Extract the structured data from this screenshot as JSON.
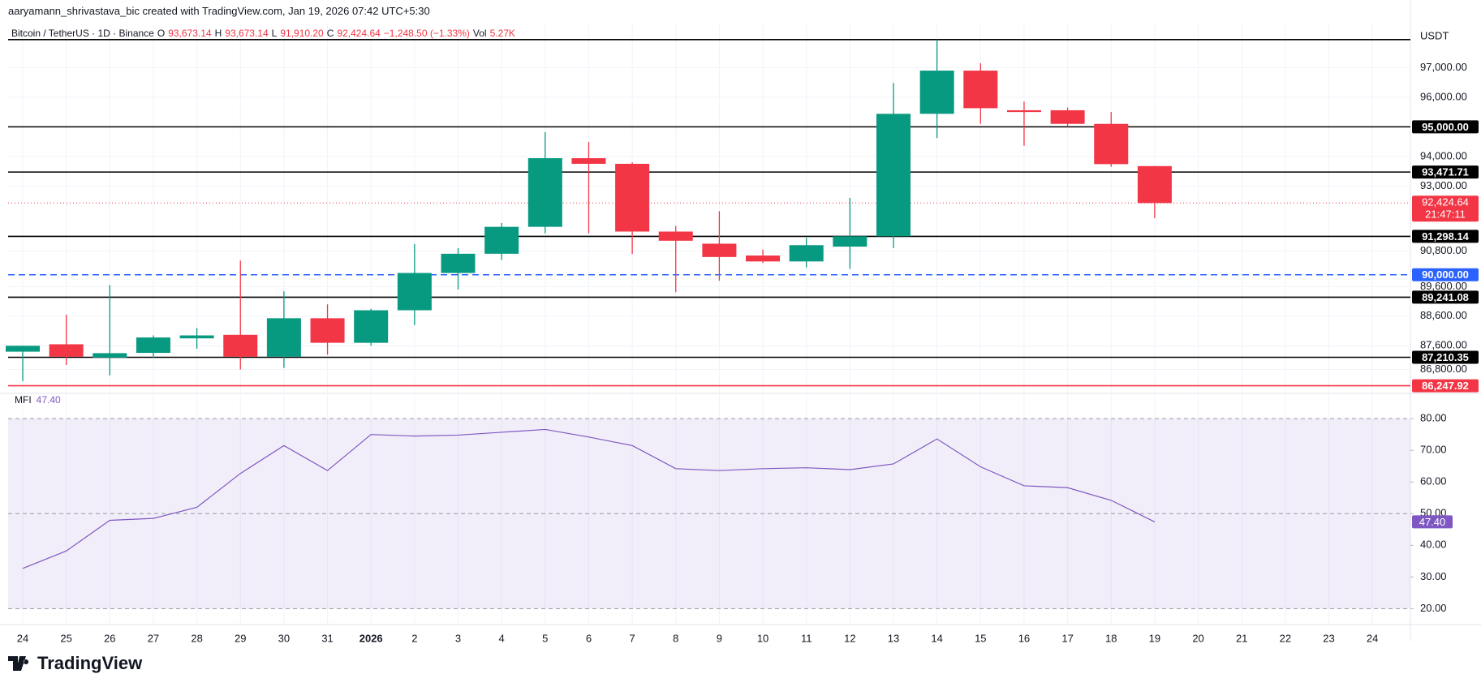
{
  "header": "aaryamann_shrivastava_bic created with TradingView.com, Jan 19, 2026 07:42 UTC+5:30",
  "chart_data": {
    "type": "candlestick",
    "legend": {
      "symbol": "Bitcoin / TetherUS · 1D · Binance",
      "o_label": "O",
      "o": "93,673.14",
      "h_label": "H",
      "h": "93,673.14",
      "l_label": "L",
      "l": "91,910.20",
      "c_label": "C",
      "c": "92,424.64",
      "change": "−1,248.50 (−1.33%)",
      "vol_label": "Vol",
      "vol": "5.27K"
    },
    "currency": "USDT",
    "categories": [
      "24",
      "25",
      "26",
      "27",
      "28",
      "29",
      "30",
      "31",
      "2026",
      "2",
      "3",
      "4",
      "5",
      "6",
      "7",
      "8",
      "9",
      "10",
      "11",
      "12",
      "13",
      "14",
      "15",
      "16",
      "17",
      "18",
      "19",
      "20",
      "21",
      "22",
      "23",
      "24"
    ],
    "up_color": "#089981",
    "down_color": "#f23645",
    "candles": [
      {
        "open": 87400,
        "high": 87600,
        "low": 86400,
        "close": 87600
      },
      {
        "open": 87650,
        "high": 88650,
        "low": 86950,
        "close": 87230
      },
      {
        "open": 87200,
        "high": 89650,
        "low": 86600,
        "close": 87350
      },
      {
        "open": 87360,
        "high": 87950,
        "low": 87200,
        "close": 87880
      },
      {
        "open": 87850,
        "high": 88200,
        "low": 87500,
        "close": 87950
      },
      {
        "open": 87970,
        "high": 90480,
        "low": 86800,
        "close": 87230
      },
      {
        "open": 87230,
        "high": 89440,
        "low": 86850,
        "close": 88530
      },
      {
        "open": 88530,
        "high": 89000,
        "low": 87300,
        "close": 87700
      },
      {
        "open": 87700,
        "high": 88850,
        "low": 87600,
        "close": 88800
      },
      {
        "open": 88800,
        "high": 91040,
        "low": 88300,
        "close": 90060
      },
      {
        "open": 90060,
        "high": 90900,
        "low": 89500,
        "close": 90710
      },
      {
        "open": 90710,
        "high": 91750,
        "low": 90500,
        "close": 91620
      },
      {
        "open": 91620,
        "high": 94820,
        "low": 91400,
        "close": 93940
      },
      {
        "open": 93940,
        "high": 94490,
        "low": 91400,
        "close": 93750
      },
      {
        "open": 93750,
        "high": 93800,
        "low": 90700,
        "close": 91460
      },
      {
        "open": 91460,
        "high": 91650,
        "low": 89410,
        "close": 91150
      },
      {
        "open": 91050,
        "high": 92150,
        "low": 89800,
        "close": 90600
      },
      {
        "open": 90650,
        "high": 90850,
        "low": 90400,
        "close": 90450
      },
      {
        "open": 90450,
        "high": 91250,
        "low": 90250,
        "close": 91000
      },
      {
        "open": 90950,
        "high": 92600,
        "low": 90200,
        "close": 91300
      },
      {
        "open": 91300,
        "high": 96480,
        "low": 90900,
        "close": 95440
      },
      {
        "open": 95440,
        "high": 97950,
        "low": 94620,
        "close": 96900
      },
      {
        "open": 96900,
        "high": 97150,
        "low": 95100,
        "close": 95630
      },
      {
        "open": 95560,
        "high": 95850,
        "low": 94360,
        "close": 95500
      },
      {
        "open": 95560,
        "high": 95650,
        "low": 95000,
        "close": 95100
      },
      {
        "open": 95100,
        "high": 95500,
        "low": 93650,
        "close": 93740
      },
      {
        "open": 93673.14,
        "high": 93673.14,
        "low": 91910.2,
        "close": 92424.64
      }
    ],
    "ylim": [
      86100,
      98300
    ],
    "yticks": [
      {
        "value": 97000,
        "label": "97,000.00"
      },
      {
        "value": 96000,
        "label": "96,000.00"
      },
      {
        "value": 94000,
        "label": "94,000.00"
      },
      {
        "value": 93000,
        "label": "93,000.00"
      },
      {
        "value": 90800,
        "label": "90,800.00"
      },
      {
        "value": 89600,
        "label": "89,600.00"
      },
      {
        "value": 88600,
        "label": "88,600.00"
      },
      {
        "value": 87600,
        "label": "87,600.00"
      },
      {
        "value": 86800,
        "label": "86,800.00"
      }
    ],
    "levels": [
      {
        "value": 97950,
        "color": "#000000"
      },
      {
        "value": 95000,
        "label": "95,000.00",
        "color": "#000000"
      },
      {
        "value": 93471.71,
        "label": "93,471.71",
        "color": "#000000"
      },
      {
        "value": 91298.14,
        "label": "91,298.14",
        "color": "#000000"
      },
      {
        "value": 90000,
        "label": "90,000.00",
        "color": "#2962ff",
        "dashed": true
      },
      {
        "value": 89241.08,
        "label": "89,241.08",
        "color": "#000000"
      },
      {
        "value": 87210.35,
        "label": "87,210.35",
        "color": "#000000"
      },
      {
        "value": 86247.92,
        "label": "86,247.92",
        "color": "#f23645"
      }
    ],
    "last_price": {
      "value": 92424.64,
      "label": "92,424.64",
      "countdown": "21:47:11",
      "color": "#f23645"
    },
    "indicator": {
      "name": "MFI",
      "last_label": "47.40",
      "color": "#7e57c2",
      "values": [
        32.7,
        38.2,
        47.9,
        48.5,
        52,
        62.7,
        71.5,
        63.6,
        75,
        74.5,
        74.8,
        75.7,
        76.6,
        74.2,
        71.5,
        64.2,
        63.6,
        64.2,
        64.5,
        63.9,
        65.7,
        73.6,
        64.8,
        58.8,
        58.2,
        54.2,
        47.4
      ],
      "ylim": [
        16,
        86.7
      ],
      "yticks": [
        {
          "value": 80,
          "label": "80.00"
        },
        {
          "value": 70,
          "label": "70.00"
        },
        {
          "value": 60,
          "label": "60.00"
        },
        {
          "value": 50,
          "label": "50.00"
        },
        {
          "value": 40,
          "label": "40.00"
        },
        {
          "value": 30,
          "label": "30.00"
        },
        {
          "value": 20,
          "label": "20.00"
        }
      ],
      "band": [
        20,
        80
      ],
      "middle": 50
    }
  },
  "brand": "TradingView"
}
